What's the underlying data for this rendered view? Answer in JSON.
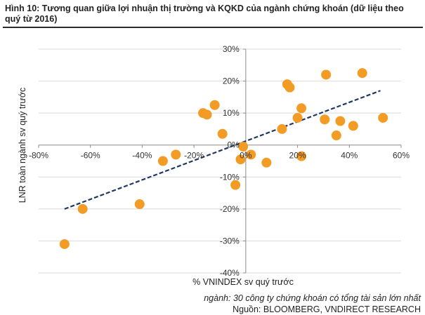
{
  "header": {
    "title": "Hình 10: Tương quan giữa lợi nhuận thị trường và KQKD của ngành chứng khoán (dữ liệu theo quý từ 2016)"
  },
  "footer": {
    "note": "ngành: 30 công ty chứng khoán có tổng tài sản lớn nhất",
    "source": "Nguồn: BLOOMBERG, VNDIRECT RESEARCH"
  },
  "chart_data": {
    "type": "scatter",
    "title": "",
    "xlabel": "% VNINDEX sv quý trước",
    "ylabel": "LNR toàn ngành sv quý trước",
    "xlim": [
      -80,
      60
    ],
    "ylim": [
      -40,
      30
    ],
    "x_ticks": [
      -80,
      -60,
      -40,
      -20,
      0,
      20,
      40,
      60
    ],
    "y_ticks": [
      -40,
      -30,
      -20,
      -10,
      0,
      10,
      20,
      30
    ],
    "x_tick_labels": [
      "-80%",
      "-60%",
      "-40%",
      "-20%",
      "0%",
      "20%",
      "40%",
      "60%"
    ],
    "y_tick_labels": [
      "-40%",
      "-30%",
      "-20%",
      "-10%",
      "0%",
      "10%",
      "20%",
      "30%"
    ],
    "grid": "horizontal",
    "legend": "none",
    "point_color": "#F39C25",
    "trendline_color": "#1F3864",
    "points": [
      {
        "x": -70,
        "y": -31
      },
      {
        "x": -63,
        "y": -20
      },
      {
        "x": -41,
        "y": -18.5
      },
      {
        "x": -32,
        "y": -5
      },
      {
        "x": -27,
        "y": -3
      },
      {
        "x": -16.5,
        "y": 10
      },
      {
        "x": -15,
        "y": 9.5
      },
      {
        "x": -12,
        "y": 12.5
      },
      {
        "x": -9,
        "y": 3.5
      },
      {
        "x": -4,
        "y": -12.5
      },
      {
        "x": -2,
        "y": -4.5
      },
      {
        "x": -1,
        "y": -0.5
      },
      {
        "x": 2,
        "y": -3
      },
      {
        "x": 8,
        "y": -5.5
      },
      {
        "x": 14,
        "y": 5
      },
      {
        "x": 16,
        "y": 19
      },
      {
        "x": 17,
        "y": 18
      },
      {
        "x": 20,
        "y": 8.5
      },
      {
        "x": 21.5,
        "y": 11.5
      },
      {
        "x": 21.5,
        "y": -3.5
      },
      {
        "x": 30.5,
        "y": 8
      },
      {
        "x": 31,
        "y": 22
      },
      {
        "x": 35,
        "y": 3
      },
      {
        "x": 36.5,
        "y": 7.5
      },
      {
        "x": 41.5,
        "y": 6
      },
      {
        "x": 45,
        "y": 22.5
      },
      {
        "x": 53,
        "y": 8.5
      }
    ],
    "trendline": {
      "x": [
        -70,
        52
      ],
      "y": [
        -20,
        17
      ]
    }
  }
}
